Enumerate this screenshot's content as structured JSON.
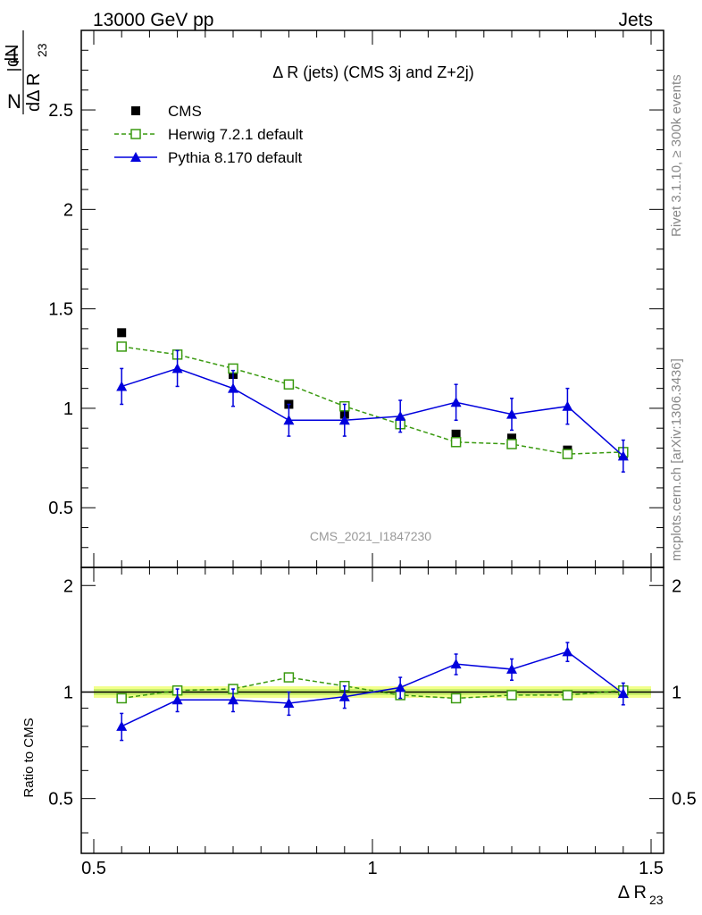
{
  "header": {
    "left": "13000 GeV pp",
    "right": "Jets"
  },
  "side_labels": {
    "rivet": "Rivet 3.1.10, ≥ 300k events",
    "mcplots": "mcplots.cern.ch [arXiv:1306.3436]"
  },
  "watermark": "CMS_2021_I1847230",
  "chart_data": {
    "type": "scatter",
    "title": "Δ R (jets) (CMS 3j and Z+2j)",
    "xlabel": "Δ R",
    "xlabel_sub": "23",
    "ylabel": {
      "num": "1",
      "den": "N",
      "d_num": "dN",
      "d_den": "dΔ R",
      "sub": "23"
    },
    "ratio_ylabel": "Ratio to CMS",
    "xlim": [
      0.5,
      1.5
    ],
    "ylim": [
      0.2,
      2.9
    ],
    "ratio_ylim": [
      0.35,
      2.25
    ],
    "x_ticks": [
      {
        "v": 0.5,
        "label": "0.5"
      },
      {
        "v": 1.0,
        "label": "1"
      },
      {
        "v": 1.5,
        "label": "1.5"
      }
    ],
    "y_ticks": [
      {
        "v": 0.5,
        "label": "0.5"
      },
      {
        "v": 1.0,
        "label": "1"
      },
      {
        "v": 1.5,
        "label": "1.5"
      },
      {
        "v": 2.0,
        "label": "2"
      },
      {
        "v": 2.5,
        "label": "2.5"
      }
    ],
    "ratio_y_ticks": [
      {
        "v": 0.5,
        "label": "0.5"
      },
      {
        "v": 1.0,
        "label": "1"
      },
      {
        "v": 2.0,
        "label": "2"
      }
    ],
    "x": [
      0.55,
      0.65,
      0.75,
      0.85,
      0.95,
      1.05,
      1.15,
      1.25,
      1.35,
      1.45
    ],
    "series": [
      {
        "name": "CMS",
        "color": "#000000",
        "marker": "filled-square",
        "values": [
          1.38,
          1.27,
          1.17,
          1.02,
          0.97,
          0.93,
          0.87,
          0.85,
          0.79,
          0.77
        ]
      },
      {
        "name": "Herwig 7.2.1 default",
        "color": "#3a9a10",
        "marker": "open-square",
        "line": "dashed",
        "values": [
          1.31,
          1.27,
          1.2,
          1.12,
          1.01,
          0.92,
          0.83,
          0.82,
          0.77,
          0.78
        ],
        "ratio": [
          0.96,
          1.01,
          1.02,
          1.1,
          1.04,
          0.98,
          0.96,
          0.98,
          0.98,
          1.01
        ]
      },
      {
        "name": "Pythia 8.170 default",
        "color": "#0000dd",
        "marker": "filled-triangle",
        "line": "solid",
        "values": [
          1.11,
          1.2,
          1.1,
          0.94,
          0.94,
          0.96,
          1.03,
          0.97,
          1.01,
          0.76
        ],
        "errors": [
          0.09,
          0.09,
          0.09,
          0.08,
          0.08,
          0.08,
          0.09,
          0.08,
          0.09,
          0.08
        ],
        "ratio": [
          0.8,
          0.95,
          0.95,
          0.93,
          0.97,
          1.03,
          1.2,
          1.16,
          1.3,
          0.99
        ],
        "ratio_errors": [
          0.07,
          0.07,
          0.07,
          0.07,
          0.07,
          0.07,
          0.08,
          0.08,
          0.08,
          0.07
        ]
      }
    ],
    "legend_position": "top-left"
  }
}
